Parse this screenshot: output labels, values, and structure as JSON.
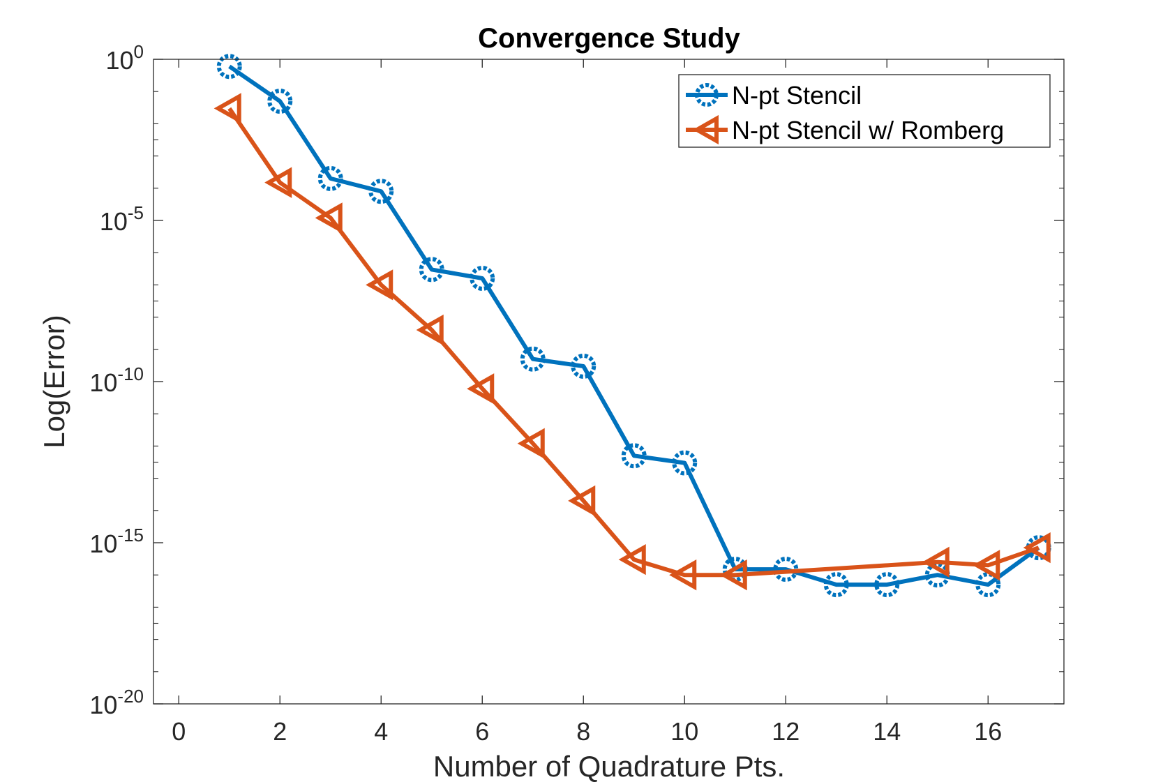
{
  "chart_data": {
    "type": "line",
    "title": "Convergence Study",
    "xlabel": "Number of Quadrature Pts.",
    "ylabel": "Log(Error)",
    "xlim": [
      -0.5,
      17.5
    ],
    "ylim": [
      1e-20,
      1
    ],
    "yscale": "log",
    "xticks": [
      0,
      2,
      4,
      6,
      8,
      10,
      12,
      14,
      16
    ],
    "xtick_labels": [
      "0",
      "2",
      "4",
      "6",
      "8",
      "10",
      "12",
      "14",
      "16"
    ],
    "yticks": [
      0,
      -5,
      -10,
      -15,
      -20
    ],
    "ytick_labels": [
      {
        "base": "10",
        "exp": "0"
      },
      {
        "base": "10",
        "exp": "-5"
      },
      {
        "base": "10",
        "exp": "-10"
      },
      {
        "base": "10",
        "exp": "-15"
      },
      {
        "base": "10",
        "exp": "-20"
      }
    ],
    "grid": false,
    "legend_position": "top-right",
    "series": [
      {
        "name": "N-pt Stencil",
        "color": "#0072BD",
        "marker": "circle",
        "x": [
          1,
          2,
          3,
          4,
          5,
          6,
          7,
          8,
          9,
          10,
          11,
          12,
          13,
          14,
          15,
          16,
          17
        ],
        "y": [
          0.6,
          0.05,
          0.0002,
          8e-05,
          3e-07,
          1.6e-07,
          5e-10,
          3e-10,
          5e-13,
          3e-13,
          1.5e-16,
          1.5e-16,
          5e-17,
          5e-17,
          1e-16,
          5e-17,
          7e-16
        ]
      },
      {
        "name": "N-pt Stencil w/ Romberg",
        "color": "#D95319",
        "marker": "triangle-left",
        "x": [
          1,
          2,
          3,
          4,
          5,
          6,
          7,
          8,
          9,
          10,
          11,
          15,
          16,
          17
        ],
        "y": [
          0.03,
          0.00015,
          1.2e-05,
          1e-07,
          4e-09,
          6e-11,
          1.2e-12,
          2e-14,
          3e-16,
          1e-16,
          1e-16,
          2.5e-16,
          2e-16,
          7e-16
        ]
      }
    ]
  }
}
